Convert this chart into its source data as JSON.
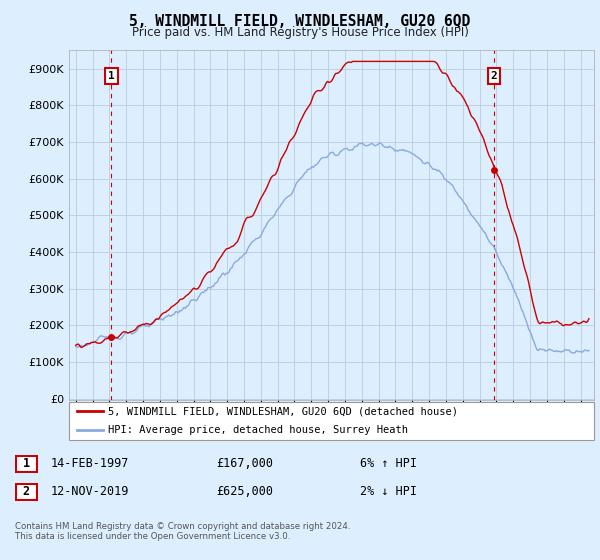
{
  "title": "5, WINDMILL FIELD, WINDLESHAM, GU20 6QD",
  "subtitle": "Price paid vs. HM Land Registry's House Price Index (HPI)",
  "yticks": [
    0,
    100000,
    200000,
    300000,
    400000,
    500000,
    600000,
    700000,
    800000,
    900000
  ],
  "ytick_labels": [
    "£0",
    "£100K",
    "£200K",
    "£300K",
    "£400K",
    "£500K",
    "£600K",
    "£700K",
    "£800K",
    "£900K"
  ],
  "ylim": [
    -5000,
    950000
  ],
  "xlim_start": 1994.6,
  "xlim_end": 2025.8,
  "sale1_year": 1997.12,
  "sale1_price": 167000,
  "sale2_year": 2019.87,
  "sale2_price": 625000,
  "sale_color": "#cc0000",
  "hpi_color": "#88aadd",
  "background_color": "#ddeeff",
  "plot_bg_color": "#ddeeff",
  "grid_color": "#bbccdd",
  "annotation_box_color": "#cc0000",
  "legend_entry1": "5, WINDMILL FIELD, WINDLESHAM, GU20 6QD (detached house)",
  "legend_entry2": "HPI: Average price, detached house, Surrey Heath",
  "footer1": "Contains HM Land Registry data © Crown copyright and database right 2024.",
  "footer2": "This data is licensed under the Open Government Licence v3.0.",
  "table_row1": [
    "1",
    "14-FEB-1997",
    "£167,000",
    "6% ↑ HPI"
  ],
  "table_row2": [
    "2",
    "12-NOV-2019",
    "£625,000",
    "2% ↓ HPI"
  ]
}
